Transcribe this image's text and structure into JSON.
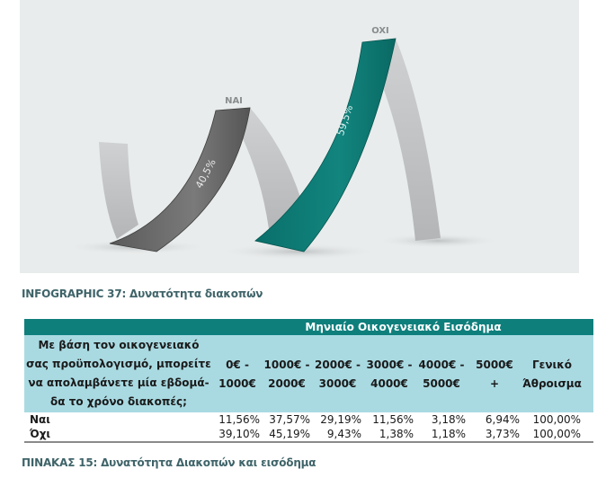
{
  "chart_data": {
    "type": "ribbon-infographic",
    "title": "INFOGRAPHIC 37: Δυνατότητα διακοπών",
    "categories": [
      "NAI",
      "OXI"
    ],
    "values": [
      40.5,
      59.5
    ],
    "value_labels": [
      "40,5%",
      "59,5%"
    ],
    "colors": [
      "#5e5e5e",
      "#0d7a74"
    ]
  },
  "caption_infographic": "INFOGRAPHIC 37: Δυνατότητα διακοπών",
  "table": {
    "group_header": "Μηνιαίο Οικογενειακό Εισόδημα",
    "question_lines": [
      "Με βάση τον οικογενειακό",
      "σας προϋπολογισμό, μπορείτε",
      "να απολαμβάνετε μία εβδομά-",
      "δα το χρόνο διακοπές;"
    ],
    "columns": [
      [
        "0€ -",
        "1000€"
      ],
      [
        "1000€ -",
        "2000€"
      ],
      [
        "2000€ -",
        "3000€"
      ],
      [
        "3000€ -",
        "4000€"
      ],
      [
        "4000€ -",
        "5000€"
      ],
      [
        "5000€",
        "+"
      ],
      [
        "Γενικό",
        "Άθροισμα"
      ]
    ],
    "rows": [
      {
        "label": "Ναι",
        "values": [
          "11,56%",
          "37,57%",
          "29,19%",
          "11,56%",
          "3,18%",
          "6,94%",
          "100,00%"
        ]
      },
      {
        "label": "Όχι",
        "values": [
          "39,10%",
          "45,19%",
          "9,43%",
          "1,38%",
          "1,18%",
          "3,73%",
          "100,00%"
        ]
      }
    ],
    "caption": "ΠΙΝΑΚΑΣ 15: Δυνατότητα Διακοπών και εισόδημα"
  }
}
